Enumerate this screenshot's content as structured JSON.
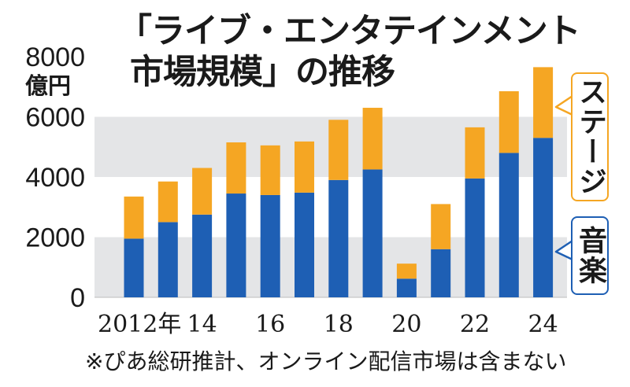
{
  "title": {
    "line1": "「ライブ・エンタテインメント",
    "line2": "市場規模」の推移"
  },
  "unit_label": "億円",
  "footnote": "※ぴあ総研推計、オンライン配信市場は含まない",
  "colors": {
    "music": "#1e5fb4",
    "stage": "#f5a623",
    "band": "#e4e5e7",
    "music_border": "#1e5fb4",
    "stage_border": "#f5a623"
  },
  "chart_data": {
    "type": "bar",
    "stacked": true,
    "title": "「ライブ・エンタテインメント市場規模」の推移",
    "ylabel": "億円",
    "ylim": [
      0,
      8000
    ],
    "yticks": [
      "0",
      "2000",
      "4000",
      "6000",
      "8000"
    ],
    "categories": [
      "2012",
      "2013",
      "2014",
      "2015",
      "2016",
      "2017",
      "2018",
      "2019",
      "2020",
      "2021",
      "2022",
      "2023",
      "2024"
    ],
    "xtick_labels": [
      "2012年",
      "",
      "14",
      "",
      "16",
      "",
      "18",
      "",
      "20",
      "",
      "22",
      "",
      "24"
    ],
    "series": [
      {
        "name": "音楽",
        "values": [
          1950,
          2500,
          2750,
          3450,
          3400,
          3480,
          3900,
          4250,
          620,
          1600,
          3950,
          4800,
          5300
        ]
      },
      {
        "name": "ステージ",
        "values": [
          1400,
          1350,
          1550,
          1700,
          1650,
          1700,
          2000,
          2050,
          500,
          1500,
          1700,
          2050,
          2350
        ]
      }
    ],
    "legend": [
      "ステージ",
      "音楽"
    ],
    "legend_position": "right"
  }
}
